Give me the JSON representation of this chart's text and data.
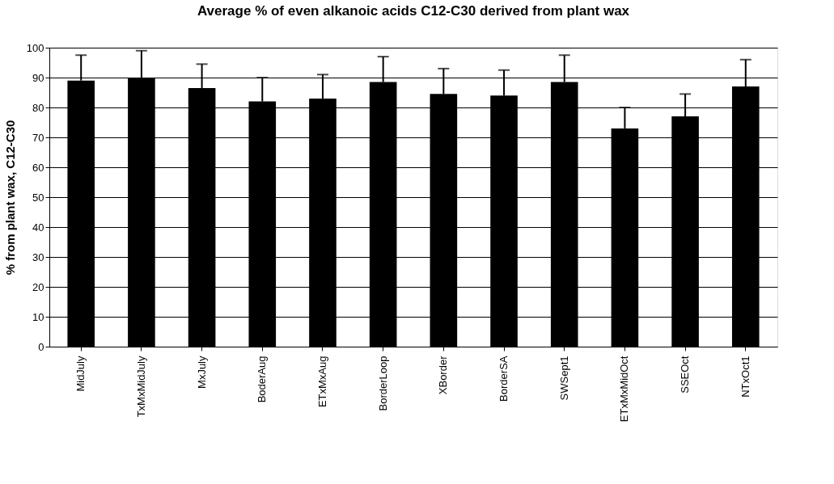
{
  "chart_data": {
    "type": "bar",
    "title": "Average % of even alkanoic acids C12-C30 derived from plant wax",
    "ylabel": "% from plant wax, C12-C30",
    "categories": [
      "MidJuly",
      "TxMxMidJuly",
      "MxJuly",
      "BoderAug",
      "ETxMxAug",
      "BorderLoop",
      "XBorder",
      "BorderSA",
      "SWSept1",
      "ETxMxMidOct",
      "SSEOct",
      "NTxOct1"
    ],
    "values": [
      89,
      90,
      86.5,
      82,
      83,
      88.5,
      84.5,
      84,
      88.5,
      73,
      77,
      87
    ],
    "errors": [
      [
        89,
        97.5
      ],
      [
        90,
        99
      ],
      [
        86.5,
        94.5
      ],
      [
        82,
        90
      ],
      [
        83,
        91
      ],
      [
        88.5,
        97
      ],
      [
        84.5,
        93
      ],
      [
        84,
        92.5
      ],
      [
        88.5,
        97.5
      ],
      [
        73,
        80
      ],
      [
        77,
        84.5
      ],
      [
        87,
        96
      ]
    ],
    "color": "#000000",
    "ylim": [
      0,
      100
    ],
    "yticks": [
      0,
      10,
      20,
      30,
      40,
      50,
      60,
      70,
      80,
      90,
      100
    ],
    "grid": "y"
  }
}
